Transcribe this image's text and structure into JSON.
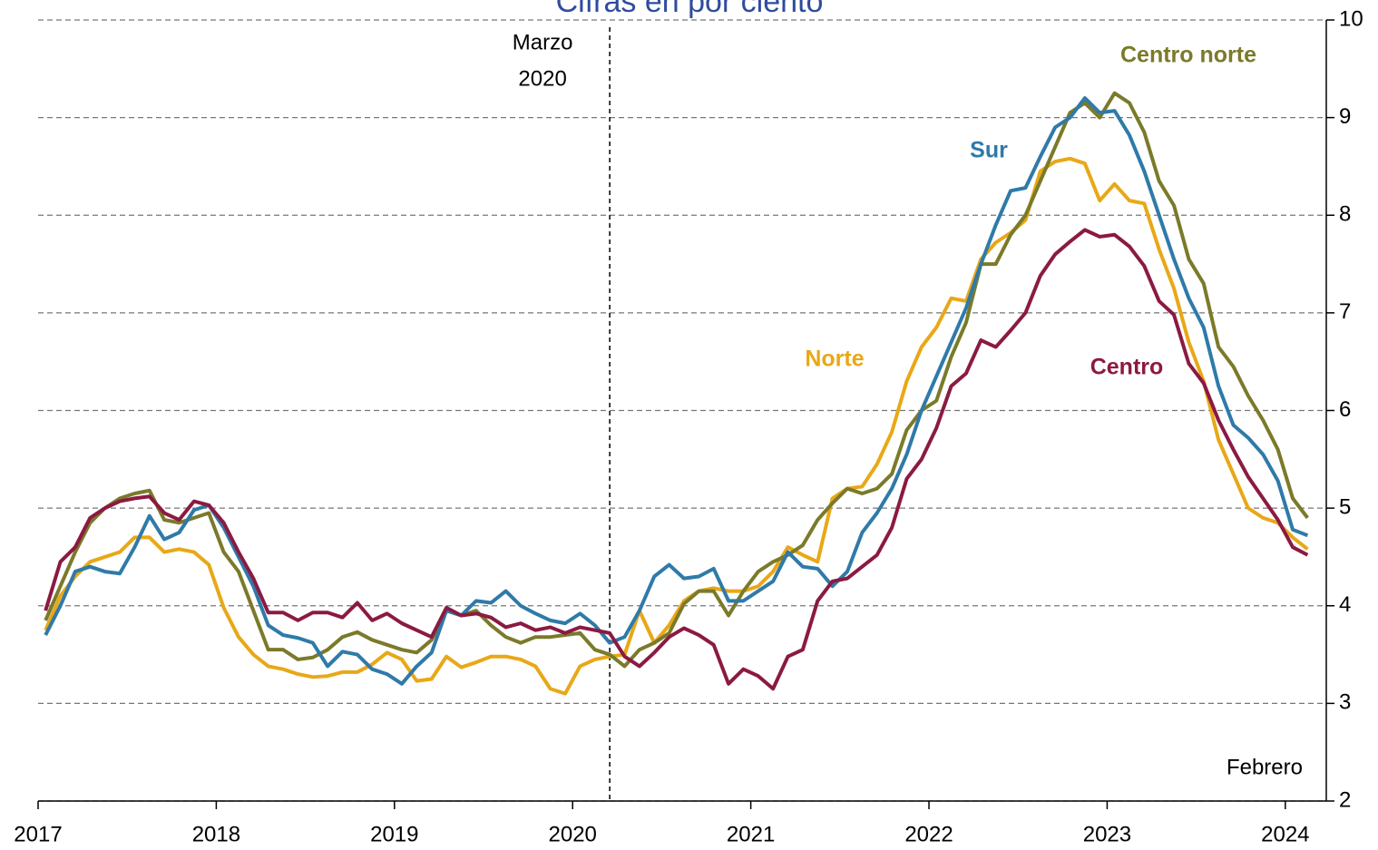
{
  "chart_data": {
    "type": "line",
    "title": "Cifras en por ciento",
    "xlim": [
      2017,
      2024.23
    ],
    "xticks": [
      2017,
      2018,
      2019,
      2020,
      2021,
      2022,
      2023,
      2024
    ],
    "ylim": [
      2,
      10
    ],
    "yticks": [
      2,
      3,
      4,
      5,
      6,
      7,
      8,
      9,
      10
    ],
    "grid": true,
    "y_axis_side": "right",
    "x": [
      "2017-01",
      "2017-02",
      "2017-03",
      "2017-04",
      "2017-05",
      "2017-06",
      "2017-07",
      "2017-08",
      "2017-09",
      "2017-10",
      "2017-11",
      "2017-12",
      "2018-01",
      "2018-02",
      "2018-03",
      "2018-04",
      "2018-05",
      "2018-06",
      "2018-07",
      "2018-08",
      "2018-09",
      "2018-10",
      "2018-11",
      "2018-12",
      "2019-01",
      "2019-02",
      "2019-03",
      "2019-04",
      "2019-05",
      "2019-06",
      "2019-07",
      "2019-08",
      "2019-09",
      "2019-10",
      "2019-11",
      "2019-12",
      "2020-01",
      "2020-02",
      "2020-03",
      "2020-04",
      "2020-05",
      "2020-06",
      "2020-07",
      "2020-08",
      "2020-09",
      "2020-10",
      "2020-11",
      "2020-12",
      "2021-01",
      "2021-02",
      "2021-03",
      "2021-04",
      "2021-05",
      "2021-06",
      "2021-07",
      "2021-08",
      "2021-09",
      "2021-10",
      "2021-11",
      "2021-12",
      "2022-01",
      "2022-02",
      "2022-03",
      "2022-04",
      "2022-05",
      "2022-06",
      "2022-07",
      "2022-08",
      "2022-09",
      "2022-10",
      "2022-11",
      "2022-12",
      "2023-01",
      "2023-02",
      "2023-03",
      "2023-04",
      "2023-05",
      "2023-06",
      "2023-07",
      "2023-08",
      "2023-09",
      "2023-10",
      "2023-11",
      "2023-12",
      "2024-01",
      "2024-02"
    ],
    "series": [
      {
        "name": "Norte",
        "color": "#e8a817",
        "values": [
          3.75,
          4.1,
          4.3,
          4.45,
          4.5,
          4.55,
          4.7,
          4.7,
          4.55,
          4.58,
          4.55,
          4.42,
          3.98,
          3.68,
          3.5,
          3.38,
          3.35,
          3.3,
          3.27,
          3.28,
          3.32,
          3.32,
          3.4,
          3.52,
          3.45,
          3.23,
          3.25,
          3.48,
          3.37,
          3.42,
          3.48,
          3.48,
          3.45,
          3.38,
          3.15,
          3.1,
          3.38,
          3.45,
          3.48,
          3.5,
          3.95,
          3.62,
          3.8,
          4.05,
          4.15,
          4.18,
          4.15,
          4.15,
          4.2,
          4.35,
          4.6,
          4.52,
          4.45,
          5.1,
          5.2,
          5.22,
          5.45,
          5.78,
          6.3,
          6.65,
          6.85,
          7.15,
          7.12,
          7.55,
          7.72,
          7.82,
          7.95,
          8.45,
          8.55,
          8.58,
          8.53,
          8.15,
          8.32,
          8.15,
          8.12,
          7.65,
          7.25,
          6.7,
          6.3,
          5.7,
          5.35,
          5.0,
          4.9,
          4.85,
          4.7,
          4.58
        ]
      },
      {
        "name": "Centro norte",
        "color": "#7a7a2a",
        "values": [
          3.85,
          4.2,
          4.55,
          4.85,
          5.0,
          5.1,
          5.15,
          5.18,
          4.88,
          4.85,
          4.9,
          4.95,
          4.55,
          4.35,
          3.95,
          3.55,
          3.55,
          3.45,
          3.47,
          3.55,
          3.68,
          3.73,
          3.65,
          3.6,
          3.55,
          3.52,
          3.65,
          3.95,
          3.9,
          3.95,
          3.8,
          3.68,
          3.62,
          3.68,
          3.68,
          3.7,
          3.72,
          3.55,
          3.5,
          3.38,
          3.55,
          3.62,
          3.72,
          4.02,
          4.15,
          4.15,
          3.9,
          4.15,
          4.35,
          4.45,
          4.52,
          4.62,
          4.88,
          5.05,
          5.2,
          5.15,
          5.2,
          5.35,
          5.8,
          6.0,
          6.1,
          6.55,
          6.9,
          7.5,
          7.5,
          7.8,
          8.0,
          8.35,
          8.7,
          9.05,
          9.15,
          9.0,
          9.25,
          9.15,
          8.85,
          8.35,
          8.1,
          7.55,
          7.3,
          6.65,
          6.45,
          6.15,
          5.9,
          5.6,
          5.1,
          4.9
        ]
      },
      {
        "name": "Sur",
        "color": "#2f7aa8",
        "values": [
          3.7,
          4.0,
          4.35,
          4.4,
          4.35,
          4.33,
          4.6,
          4.92,
          4.68,
          4.75,
          4.98,
          5.03,
          4.8,
          4.5,
          4.2,
          3.8,
          3.7,
          3.67,
          3.62,
          3.38,
          3.53,
          3.5,
          3.35,
          3.3,
          3.2,
          3.38,
          3.52,
          3.95,
          3.9,
          4.05,
          4.03,
          4.15,
          4.0,
          3.92,
          3.85,
          3.82,
          3.92,
          3.8,
          3.62,
          3.68,
          3.95,
          4.3,
          4.42,
          4.28,
          4.3,
          4.38,
          4.05,
          4.05,
          4.15,
          4.25,
          4.55,
          4.4,
          4.38,
          4.2,
          4.35,
          4.75,
          4.95,
          5.2,
          5.55,
          6.0,
          6.35,
          6.7,
          7.05,
          7.5,
          7.9,
          8.25,
          8.28,
          8.6,
          8.9,
          9.0,
          9.2,
          9.05,
          9.07,
          8.82,
          8.45,
          8.0,
          7.55,
          7.15,
          6.85,
          6.25,
          5.85,
          5.72,
          5.55,
          5.28,
          4.78,
          4.72
        ]
      },
      {
        "name": "Centro",
        "color": "#8b1a42",
        "values": [
          3.95,
          4.45,
          4.6,
          4.9,
          5.0,
          5.07,
          5.1,
          5.12,
          4.95,
          4.88,
          5.07,
          5.03,
          4.85,
          4.55,
          4.28,
          3.93,
          3.93,
          3.85,
          3.93,
          3.93,
          3.88,
          4.03,
          3.85,
          3.92,
          3.82,
          3.75,
          3.68,
          3.98,
          3.9,
          3.92,
          3.88,
          3.78,
          3.82,
          3.75,
          3.78,
          3.72,
          3.78,
          3.75,
          3.72,
          3.48,
          3.38,
          3.52,
          3.68,
          3.77,
          3.7,
          3.6,
          3.2,
          3.35,
          3.28,
          3.15,
          3.48,
          3.55,
          4.05,
          4.25,
          4.28,
          4.4,
          4.52,
          4.8,
          5.3,
          5.5,
          5.82,
          6.25,
          6.38,
          6.72,
          6.65,
          6.82,
          7.0,
          7.38,
          7.6,
          7.73,
          7.85,
          7.78,
          7.8,
          7.68,
          7.48,
          7.12,
          6.98,
          6.48,
          6.28,
          5.9,
          5.6,
          5.32,
          5.1,
          4.88,
          4.6,
          4.52
        ]
      }
    ],
    "annotations": [
      {
        "lines": [
          "Marzo",
          "2020"
        ],
        "x": "2020-03"
      },
      {
        "lines": [
          "Febrero"
        ]
      }
    ]
  }
}
